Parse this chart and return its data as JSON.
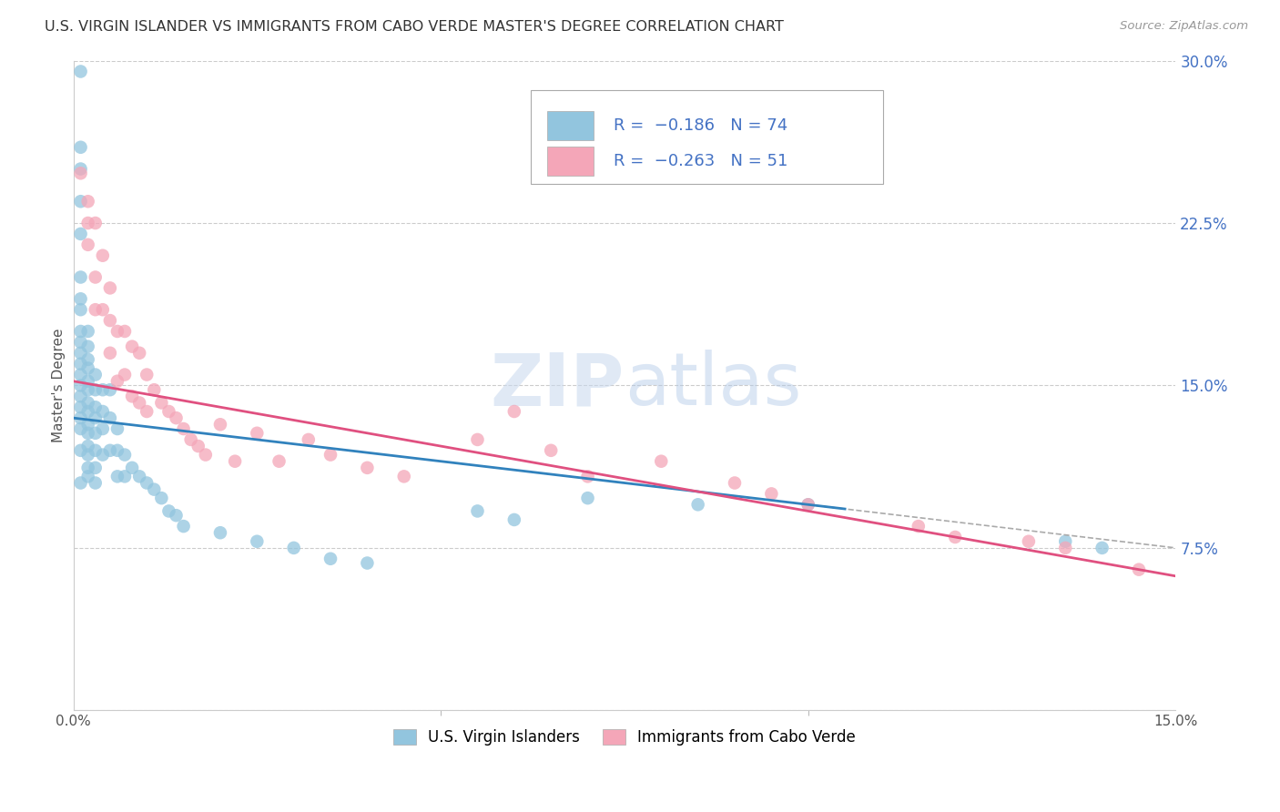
{
  "title": "U.S. VIRGIN ISLANDER VS IMMIGRANTS FROM CABO VERDE MASTER'S DEGREE CORRELATION CHART",
  "source": "Source: ZipAtlas.com",
  "ylabel": "Master's Degree",
  "ytick_labels": [
    "",
    "7.5%",
    "15.0%",
    "22.5%",
    "30.0%"
  ],
  "ytick_values": [
    0.0,
    0.075,
    0.15,
    0.225,
    0.3
  ],
  "xlim": [
    0.0,
    0.15
  ],
  "ylim": [
    0.0,
    0.3
  ],
  "legend_line1": "R =  -0.186   N = 74",
  "legend_line2": "R =  -0.263   N = 51",
  "color_blue": "#92c5de",
  "color_pink": "#f4a6b8",
  "color_blue_line": "#3182bd",
  "color_pink_line": "#e05080",
  "color_dashed": "#aaaaaa",
  "legend_label1": "U.S. Virgin Islanders",
  "legend_label2": "Immigrants from Cabo Verde",
  "blue_intercept": 0.135,
  "blue_slope": -0.4,
  "pink_intercept": 0.152,
  "pink_slope": -0.6,
  "blue_x": [
    0.001,
    0.001,
    0.001,
    0.001,
    0.001,
    0.001,
    0.001,
    0.001,
    0.001,
    0.001,
    0.001,
    0.001,
    0.001,
    0.001,
    0.001,
    0.001,
    0.001,
    0.001,
    0.001,
    0.001,
    0.002,
    0.002,
    0.002,
    0.002,
    0.002,
    0.002,
    0.002,
    0.002,
    0.002,
    0.002,
    0.002,
    0.002,
    0.002,
    0.002,
    0.003,
    0.003,
    0.003,
    0.003,
    0.003,
    0.003,
    0.003,
    0.003,
    0.004,
    0.004,
    0.004,
    0.004,
    0.005,
    0.005,
    0.005,
    0.006,
    0.006,
    0.006,
    0.007,
    0.007,
    0.008,
    0.009,
    0.01,
    0.011,
    0.012,
    0.013,
    0.014,
    0.015,
    0.02,
    0.025,
    0.03,
    0.035,
    0.04,
    0.055,
    0.06,
    0.07,
    0.085,
    0.1,
    0.135,
    0.14
  ],
  "blue_y": [
    0.295,
    0.26,
    0.25,
    0.235,
    0.22,
    0.2,
    0.19,
    0.185,
    0.175,
    0.17,
    0.165,
    0.16,
    0.155,
    0.15,
    0.145,
    0.14,
    0.135,
    0.13,
    0.12,
    0.105,
    0.175,
    0.168,
    0.162,
    0.158,
    0.152,
    0.148,
    0.142,
    0.138,
    0.132,
    0.128,
    0.122,
    0.118,
    0.112,
    0.108,
    0.155,
    0.148,
    0.14,
    0.135,
    0.128,
    0.12,
    0.112,
    0.105,
    0.148,
    0.138,
    0.13,
    0.118,
    0.148,
    0.135,
    0.12,
    0.13,
    0.12,
    0.108,
    0.118,
    0.108,
    0.112,
    0.108,
    0.105,
    0.102,
    0.098,
    0.092,
    0.09,
    0.085,
    0.082,
    0.078,
    0.075,
    0.07,
    0.068,
    0.092,
    0.088,
    0.098,
    0.095,
    0.095,
    0.078,
    0.075
  ],
  "pink_x": [
    0.001,
    0.002,
    0.002,
    0.002,
    0.003,
    0.003,
    0.003,
    0.004,
    0.004,
    0.005,
    0.005,
    0.005,
    0.006,
    0.006,
    0.007,
    0.007,
    0.008,
    0.008,
    0.009,
    0.009,
    0.01,
    0.01,
    0.011,
    0.012,
    0.013,
    0.014,
    0.015,
    0.016,
    0.017,
    0.018,
    0.02,
    0.022,
    0.025,
    0.028,
    0.032,
    0.035,
    0.04,
    0.045,
    0.055,
    0.06,
    0.065,
    0.07,
    0.08,
    0.09,
    0.095,
    0.1,
    0.115,
    0.12,
    0.13,
    0.135,
    0.145
  ],
  "pink_y": [
    0.248,
    0.235,
    0.225,
    0.215,
    0.225,
    0.2,
    0.185,
    0.21,
    0.185,
    0.195,
    0.18,
    0.165,
    0.175,
    0.152,
    0.175,
    0.155,
    0.168,
    0.145,
    0.165,
    0.142,
    0.155,
    0.138,
    0.148,
    0.142,
    0.138,
    0.135,
    0.13,
    0.125,
    0.122,
    0.118,
    0.132,
    0.115,
    0.128,
    0.115,
    0.125,
    0.118,
    0.112,
    0.108,
    0.125,
    0.138,
    0.12,
    0.108,
    0.115,
    0.105,
    0.1,
    0.095,
    0.085,
    0.08,
    0.078,
    0.075,
    0.065
  ]
}
